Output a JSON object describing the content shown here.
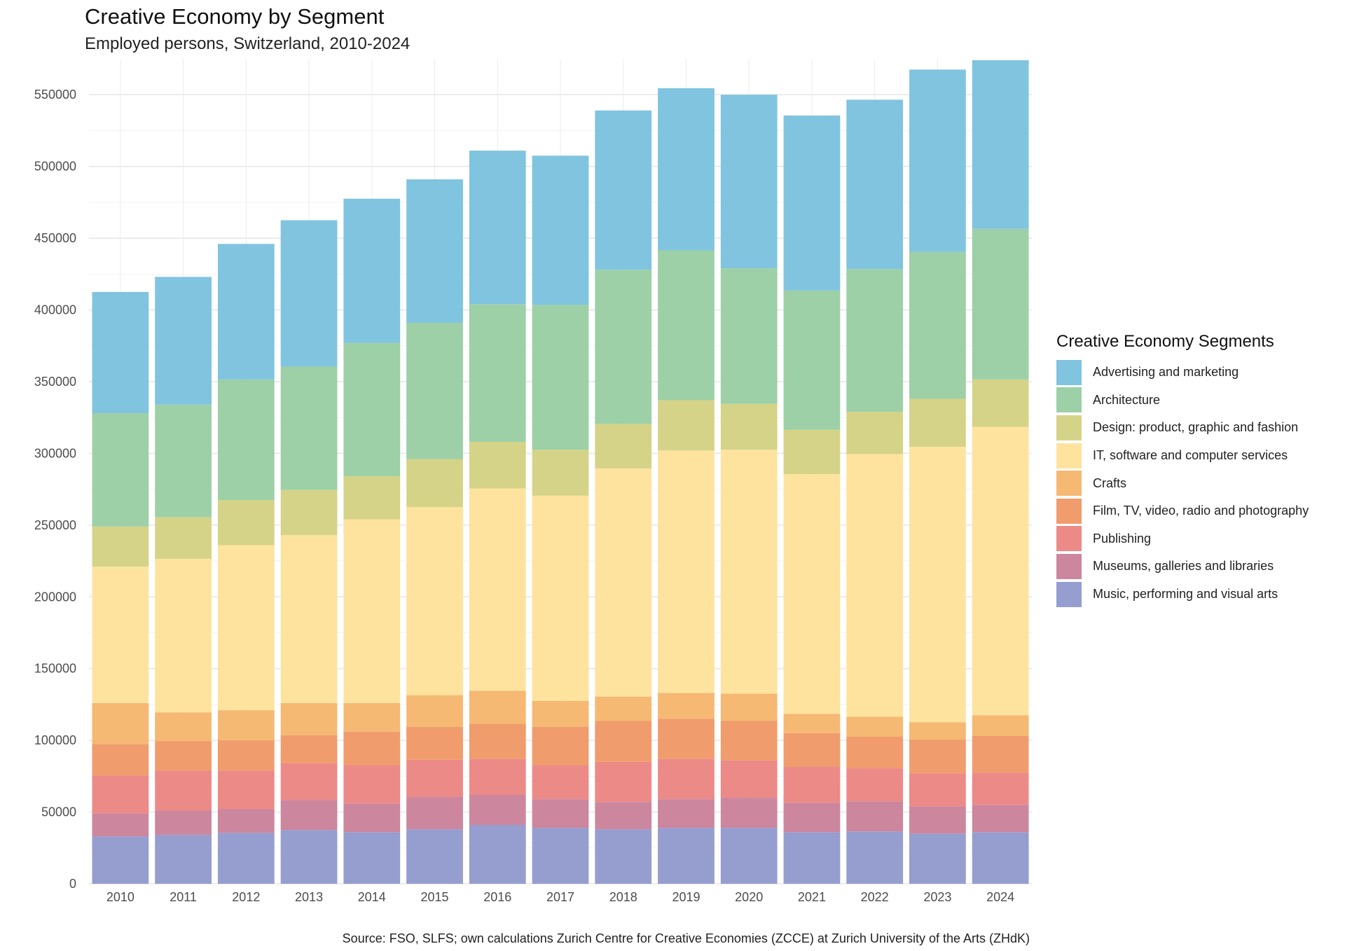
{
  "chart_data": {
    "type": "bar",
    "stacked": true,
    "title": "Creative Economy by Segment",
    "subtitle": "Employed persons, Switzerland, 2010-2024",
    "caption": "Source: FSO, SLFS; own calculations Zurich Centre for Creative Economies (ZCCE) at Zurich University of the Arts (ZHdK)",
    "xlabel": "",
    "ylabel": "",
    "ylim": [
      0,
      575000
    ],
    "yticks": [
      0,
      50000,
      100000,
      150000,
      200000,
      250000,
      300000,
      350000,
      400000,
      450000,
      500000,
      550000
    ],
    "ytick_labels": [
      "0",
      "50000",
      "100000",
      "150000",
      "200000",
      "250000",
      "300000",
      "350000",
      "400000",
      "450000",
      "500000",
      "550000"
    ],
    "grid": true,
    "legend": {
      "title": "Creative Economy Segments",
      "position": "right"
    },
    "categories": [
      "2010",
      "2011",
      "2012",
      "2013",
      "2014",
      "2015",
      "2016",
      "2017",
      "2018",
      "2019",
      "2020",
      "2021",
      "2022",
      "2023",
      "2024"
    ],
    "series": [
      {
        "name": "Music, performing and visual arts",
        "color": "#969DCF",
        "values": [
          33000,
          34000,
          35500,
          37500,
          36000,
          38000,
          41000,
          39000,
          38000,
          39000,
          39000,
          36000,
          36500,
          35000,
          36000
        ]
      },
      {
        "name": "Museums, galleries and libraries",
        "color": "#CC869E",
        "values": [
          16000,
          17000,
          16500,
          21000,
          20000,
          22500,
          21000,
          20000,
          19000,
          20000,
          21000,
          20500,
          21000,
          19000,
          19000
        ]
      },
      {
        "name": "Publishing",
        "color": "#EC8A88",
        "values": [
          26500,
          28000,
          27000,
          25500,
          26500,
          26000,
          25000,
          23500,
          28000,
          28000,
          26000,
          25000,
          23000,
          23000,
          22500
        ]
      },
      {
        "name": "Film, TV, video, radio and photography",
        "color": "#F09C6D",
        "values": [
          22000,
          20500,
          21000,
          19500,
          23500,
          23000,
          24500,
          27000,
          28500,
          28000,
          27500,
          23500,
          22000,
          23500,
          25500
        ]
      },
      {
        "name": "Crafts",
        "color": "#F5B973",
        "values": [
          28500,
          20000,
          21000,
          22500,
          20000,
          22000,
          23000,
          18000,
          17000,
          18000,
          19000,
          13500,
          14000,
          12000,
          14500
        ]
      },
      {
        "name": "IT, software and computer services",
        "color": "#FEE39F",
        "values": [
          95000,
          107000,
          115000,
          117000,
          128000,
          131000,
          141000,
          143000,
          159000,
          169000,
          170000,
          167000,
          183000,
          192000,
          201000
        ]
      },
      {
        "name": "Design: product, graphic and fashion",
        "color": "#D5D388",
        "values": [
          28000,
          29000,
          31500,
          31500,
          30000,
          33500,
          32500,
          32000,
          31000,
          35000,
          32000,
          31000,
          29500,
          33500,
          33000
        ]
      },
      {
        "name": "Architecture",
        "color": "#9DD0A7",
        "values": [
          79000,
          78500,
          84000,
          86000,
          93000,
          95000,
          96000,
          101000,
          107500,
          104500,
          94500,
          97000,
          99500,
          102500,
          105000
        ]
      },
      {
        "name": "Advertising and marketing",
        "color": "#80C4DF",
        "values": [
          84500,
          89000,
          94500,
          102000,
          100500,
          100000,
          107000,
          104000,
          111000,
          113000,
          121000,
          122000,
          118000,
          127000,
          117500
        ]
      }
    ],
    "legend_order": [
      "Advertising and marketing",
      "Architecture",
      "Design: product, graphic and fashion",
      "IT, software and computer services",
      "Crafts",
      "Film, TV, video, radio and photography",
      "Publishing",
      "Museums, galleries and libraries",
      "Music, performing and visual arts"
    ]
  }
}
